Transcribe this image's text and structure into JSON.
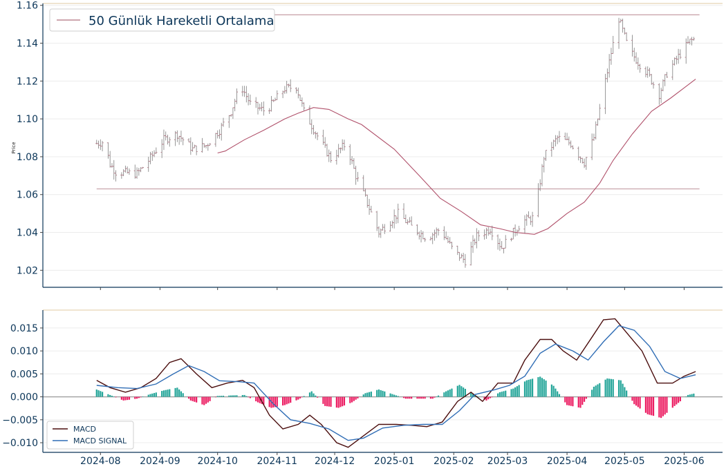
{
  "chart_data": [
    {
      "type": "candlestick",
      "ylabel": "Price",
      "ylim": [
        1.011,
        1.161
      ],
      "yticks": [
        1.02,
        1.04,
        1.06,
        1.08,
        1.1,
        1.12,
        1.14,
        1.16
      ],
      "xlim": [
        "2024-07-02",
        "2025-06-21"
      ],
      "legend": {
        "position": "top-left",
        "entries": [
          "50 Günlük Hareketli Ortalama"
        ]
      },
      "grid": "horizontal",
      "horizontal_lines": [
        1.063,
        1.155
      ],
      "price_anchors": [
        [
          "2024-07-30",
          1.087
        ],
        [
          "2024-08-03",
          1.088
        ],
        [
          "2024-08-06",
          1.076
        ],
        [
          "2024-08-09",
          1.072
        ],
        [
          "2024-08-20",
          1.071
        ],
        [
          "2024-08-26",
          1.078
        ],
        [
          "2024-09-03",
          1.089
        ],
        [
          "2024-09-10",
          1.092
        ],
        [
          "2024-09-18",
          1.084
        ],
        [
          "2024-09-25",
          1.086
        ],
        [
          "2024-10-02",
          1.094
        ],
        [
          "2024-10-08",
          1.104
        ],
        [
          "2024-10-13",
          1.118
        ],
        [
          "2024-10-18",
          1.108
        ],
        [
          "2024-10-26",
          1.104
        ],
        [
          "2024-11-05",
          1.116
        ],
        [
          "2024-11-11",
          1.117
        ],
        [
          "2024-11-15",
          1.104
        ],
        [
          "2024-11-22",
          1.091
        ],
        [
          "2024-11-29",
          1.079
        ],
        [
          "2024-12-07",
          1.087
        ],
        [
          "2024-12-12",
          1.07
        ],
        [
          "2024-12-17",
          1.058
        ],
        [
          "2024-12-24",
          1.04
        ],
        [
          "2025-01-03",
          1.05
        ],
        [
          "2025-01-10",
          1.043
        ],
        [
          "2025-01-18",
          1.037
        ],
        [
          "2025-01-25",
          1.042
        ],
        [
          "2025-02-01",
          1.03
        ],
        [
          "2025-02-07",
          1.025
        ],
        [
          "2025-02-13",
          1.038
        ],
        [
          "2025-02-20",
          1.042
        ],
        [
          "2025-02-26",
          1.032
        ],
        [
          "2025-03-04",
          1.04
        ],
        [
          "2025-03-09",
          1.046
        ],
        [
          "2025-03-15",
          1.048
        ],
        [
          "2025-03-20",
          1.08
        ],
        [
          "2025-03-27",
          1.09
        ],
        [
          "2025-04-03",
          1.087
        ],
        [
          "2025-04-10",
          1.077
        ],
        [
          "2025-04-15",
          1.09
        ],
        [
          "2025-04-20",
          1.115
        ],
        [
          "2025-04-24",
          1.135
        ],
        [
          "2025-04-28",
          1.153
        ],
        [
          "2025-05-03",
          1.137
        ],
        [
          "2025-05-08",
          1.13
        ],
        [
          "2025-05-13",
          1.124
        ],
        [
          "2025-05-19",
          1.113
        ],
        [
          "2025-05-23",
          1.124
        ],
        [
          "2025-05-29",
          1.133
        ],
        [
          "2025-06-04",
          1.141
        ],
        [
          "2025-06-06",
          1.142
        ]
      ],
      "series": [
        {
          "name": "50 Günlük Hareketli Ortalama",
          "points": [
            [
              "2024-10-01",
              1.082
            ],
            [
              "2024-10-05",
              1.083
            ],
            [
              "2024-10-15",
              1.089
            ],
            [
              "2024-10-25",
              1.094
            ],
            [
              "2024-11-05",
              1.1
            ],
            [
              "2024-11-12",
              1.103
            ],
            [
              "2024-11-20",
              1.106
            ],
            [
              "2024-11-28",
              1.105
            ],
            [
              "2024-12-08",
              1.1
            ],
            [
              "2024-12-15",
              1.097
            ],
            [
              "2025-01-01",
              1.084
            ],
            [
              "2025-01-15",
              1.069
            ],
            [
              "2025-01-25",
              1.058
            ],
            [
              "2025-02-05",
              1.051
            ],
            [
              "2025-02-15",
              1.044
            ],
            [
              "2025-02-25",
              1.042
            ],
            [
              "2025-03-05",
              1.04
            ],
            [
              "2025-03-15",
              1.039
            ],
            [
              "2025-03-22",
              1.042
            ],
            [
              "2025-04-01",
              1.05
            ],
            [
              "2025-04-10",
              1.056
            ],
            [
              "2025-04-18",
              1.066
            ],
            [
              "2025-04-25",
              1.078
            ],
            [
              "2025-05-05",
              1.092
            ],
            [
              "2025-05-15",
              1.104
            ],
            [
              "2025-05-25",
              1.111
            ],
            [
              "2025-06-07",
              1.121
            ]
          ]
        }
      ]
    },
    {
      "type": "line+bar",
      "ylim": [
        -0.0121,
        0.0189
      ],
      "yticks": [
        -0.01,
        -0.005,
        0.0,
        0.005,
        0.01,
        0.015
      ],
      "ytick_labels": [
        "−0.010",
        "−0.005",
        "0.000",
        "0.005",
        "0.010",
        "0.015"
      ],
      "xlim": [
        "2024-07-02",
        "2025-06-21"
      ],
      "xticks": [
        "2024-08-01",
        "2024-09-01",
        "2024-10-01",
        "2024-11-01",
        "2024-12-01",
        "2025-01-01",
        "2025-02-01",
        "2025-03-01",
        "2025-04-01",
        "2025-05-01",
        "2025-06-01"
      ],
      "xtick_labels": [
        "2024-08",
        "2024-09",
        "2024-10",
        "2024-11",
        "2024-12",
        "2025-01",
        "2025-02",
        "2025-03",
        "2025-04",
        "2025-05",
        "2025-06"
      ],
      "legend": {
        "position": "bottom-left",
        "entries": [
          "MACD",
          "MACD SIGNAL"
        ]
      },
      "grid": "horizontal",
      "series": [
        {
          "name": "MACD",
          "points": [
            [
              "2024-07-30",
              0.0036
            ],
            [
              "2024-08-06",
              0.002
            ],
            [
              "2024-08-14",
              0.001
            ],
            [
              "2024-08-22",
              0.002
            ],
            [
              "2024-08-30",
              0.004
            ],
            [
              "2024-09-06",
              0.0075
            ],
            [
              "2024-09-12",
              0.0083
            ],
            [
              "2024-09-20",
              0.005
            ],
            [
              "2024-09-28",
              0.002
            ],
            [
              "2024-10-06",
              0.003
            ],
            [
              "2024-10-14",
              0.0036
            ],
            [
              "2024-10-20",
              0.002
            ],
            [
              "2024-10-28",
              -0.004
            ],
            [
              "2024-11-04",
              -0.007
            ],
            [
              "2024-11-12",
              -0.006
            ],
            [
              "2024-11-18",
              -0.004
            ],
            [
              "2024-11-24",
              -0.006
            ],
            [
              "2024-12-02",
              -0.01
            ],
            [
              "2024-12-08",
              -0.011
            ],
            [
              "2024-12-16",
              -0.0085
            ],
            [
              "2024-12-24",
              -0.006
            ],
            [
              "2025-01-02",
              -0.006
            ],
            [
              "2025-01-10",
              -0.0062
            ],
            [
              "2025-01-18",
              -0.0065
            ],
            [
              "2025-01-26",
              -0.0055
            ],
            [
              "2025-02-03",
              -0.001
            ],
            [
              "2025-02-10",
              0.001
            ],
            [
              "2025-02-16",
              -0.001
            ],
            [
              "2025-02-24",
              0.003
            ],
            [
              "2025-03-04",
              0.003
            ],
            [
              "2025-03-10",
              0.008
            ],
            [
              "2025-03-18",
              0.0125
            ],
            [
              "2025-03-24",
              0.0125
            ],
            [
              "2025-03-30",
              0.01
            ],
            [
              "2025-04-06",
              0.008
            ],
            [
              "2025-04-14",
              0.013
            ],
            [
              "2025-04-20",
              0.0168
            ],
            [
              "2025-04-26",
              0.017
            ],
            [
              "2025-05-04",
              0.013
            ],
            [
              "2025-05-10",
              0.01
            ],
            [
              "2025-05-18",
              0.003
            ],
            [
              "2025-05-26",
              0.003
            ],
            [
              "2025-06-01",
              0.0045
            ],
            [
              "2025-06-07",
              0.0055
            ]
          ]
        },
        {
          "name": "MACD SIGNAL",
          "points": [
            [
              "2024-07-30",
              0.0025
            ],
            [
              "2024-08-10",
              0.002
            ],
            [
              "2024-08-20",
              0.0018
            ],
            [
              "2024-08-30",
              0.0028
            ],
            [
              "2024-09-08",
              0.005
            ],
            [
              "2024-09-16",
              0.0068
            ],
            [
              "2024-09-24",
              0.0055
            ],
            [
              "2024-10-02",
              0.0035
            ],
            [
              "2024-10-12",
              0.0033
            ],
            [
              "2024-10-20",
              0.003
            ],
            [
              "2024-10-30",
              -0.0015
            ],
            [
              "2024-11-08",
              -0.005
            ],
            [
              "2024-11-18",
              -0.0058
            ],
            [
              "2024-11-28",
              -0.007
            ],
            [
              "2024-12-08",
              -0.0095
            ],
            [
              "2024-12-16",
              -0.009
            ],
            [
              "2024-12-26",
              -0.0068
            ],
            [
              "2025-01-06",
              -0.0062
            ],
            [
              "2025-01-16",
              -0.006
            ],
            [
              "2025-01-26",
              -0.006
            ],
            [
              "2025-02-04",
              -0.003
            ],
            [
              "2025-02-12",
              0.0005
            ],
            [
              "2025-02-22",
              0.0015
            ],
            [
              "2025-03-02",
              0.0025
            ],
            [
              "2025-03-10",
              0.0045
            ],
            [
              "2025-03-18",
              0.0095
            ],
            [
              "2025-03-26",
              0.0115
            ],
            [
              "2025-04-04",
              0.01
            ],
            [
              "2025-04-12",
              0.008
            ],
            [
              "2025-04-20",
              0.012
            ],
            [
              "2025-04-28",
              0.0155
            ],
            [
              "2025-05-06",
              0.0145
            ],
            [
              "2025-05-14",
              0.011
            ],
            [
              "2025-05-22",
              0.0055
            ],
            [
              "2025-05-30",
              0.004
            ],
            [
              "2025-06-07",
              0.0048
            ]
          ]
        }
      ],
      "histogram": {
        "positive_color": "#26a69a",
        "negative_color": "#ec1e63",
        "points": [
          [
            "2024-07-30",
            0.0016
          ],
          [
            "2024-08-06",
            0.0004
          ],
          [
            "2024-08-13",
            -0.0008
          ],
          [
            "2024-08-20",
            -0.0004
          ],
          [
            "2024-08-27",
            0.0006
          ],
          [
            "2024-09-03",
            0.0014
          ],
          [
            "2024-09-10",
            0.002
          ],
          [
            "2024-09-17",
            -0.0008
          ],
          [
            "2024-09-24",
            -0.0018
          ],
          [
            "2024-10-01",
            0.0002
          ],
          [
            "2024-10-15",
            0.0004
          ],
          [
            "2024-10-22",
            -0.0012
          ],
          [
            "2024-10-29",
            -0.0024
          ],
          [
            "2024-11-05",
            -0.0018
          ],
          [
            "2024-11-12",
            -0.0006
          ],
          [
            "2024-11-19",
            0.0012
          ],
          [
            "2024-11-26",
            -0.002
          ],
          [
            "2024-12-03",
            -0.0024
          ],
          [
            "2024-12-10",
            -0.0012
          ],
          [
            "2024-12-17",
            0.0008
          ],
          [
            "2024-12-24",
            0.0016
          ],
          [
            "2024-12-31",
            0.0006
          ],
          [
            "2025-01-07",
            -0.0004
          ],
          [
            "2025-01-21",
            -0.0004
          ],
          [
            "2025-01-28",
            0.0012
          ],
          [
            "2025-02-04",
            0.0026
          ],
          [
            "2025-02-11",
            0.0006
          ],
          [
            "2025-02-18",
            -0.0008
          ],
          [
            "2025-02-25",
            0.001
          ],
          [
            "2025-03-04",
            0.0018
          ],
          [
            "2025-03-11",
            0.0036
          ],
          [
            "2025-03-18",
            0.0044
          ],
          [
            "2025-03-25",
            0.0024
          ],
          [
            "2025-04-01",
            -0.0018
          ],
          [
            "2025-04-08",
            -0.0024
          ],
          [
            "2025-04-15",
            0.0022
          ],
          [
            "2025-04-22",
            0.004
          ],
          [
            "2025-04-29",
            0.0036
          ],
          [
            "2025-05-06",
            -0.0016
          ],
          [
            "2025-05-13",
            -0.0038
          ],
          [
            "2025-05-20",
            -0.0046
          ],
          [
            "2025-05-27",
            -0.002
          ],
          [
            "2025-06-03",
            0.0004
          ],
          [
            "2025-06-07",
            0.0008
          ]
        ]
      }
    }
  ]
}
